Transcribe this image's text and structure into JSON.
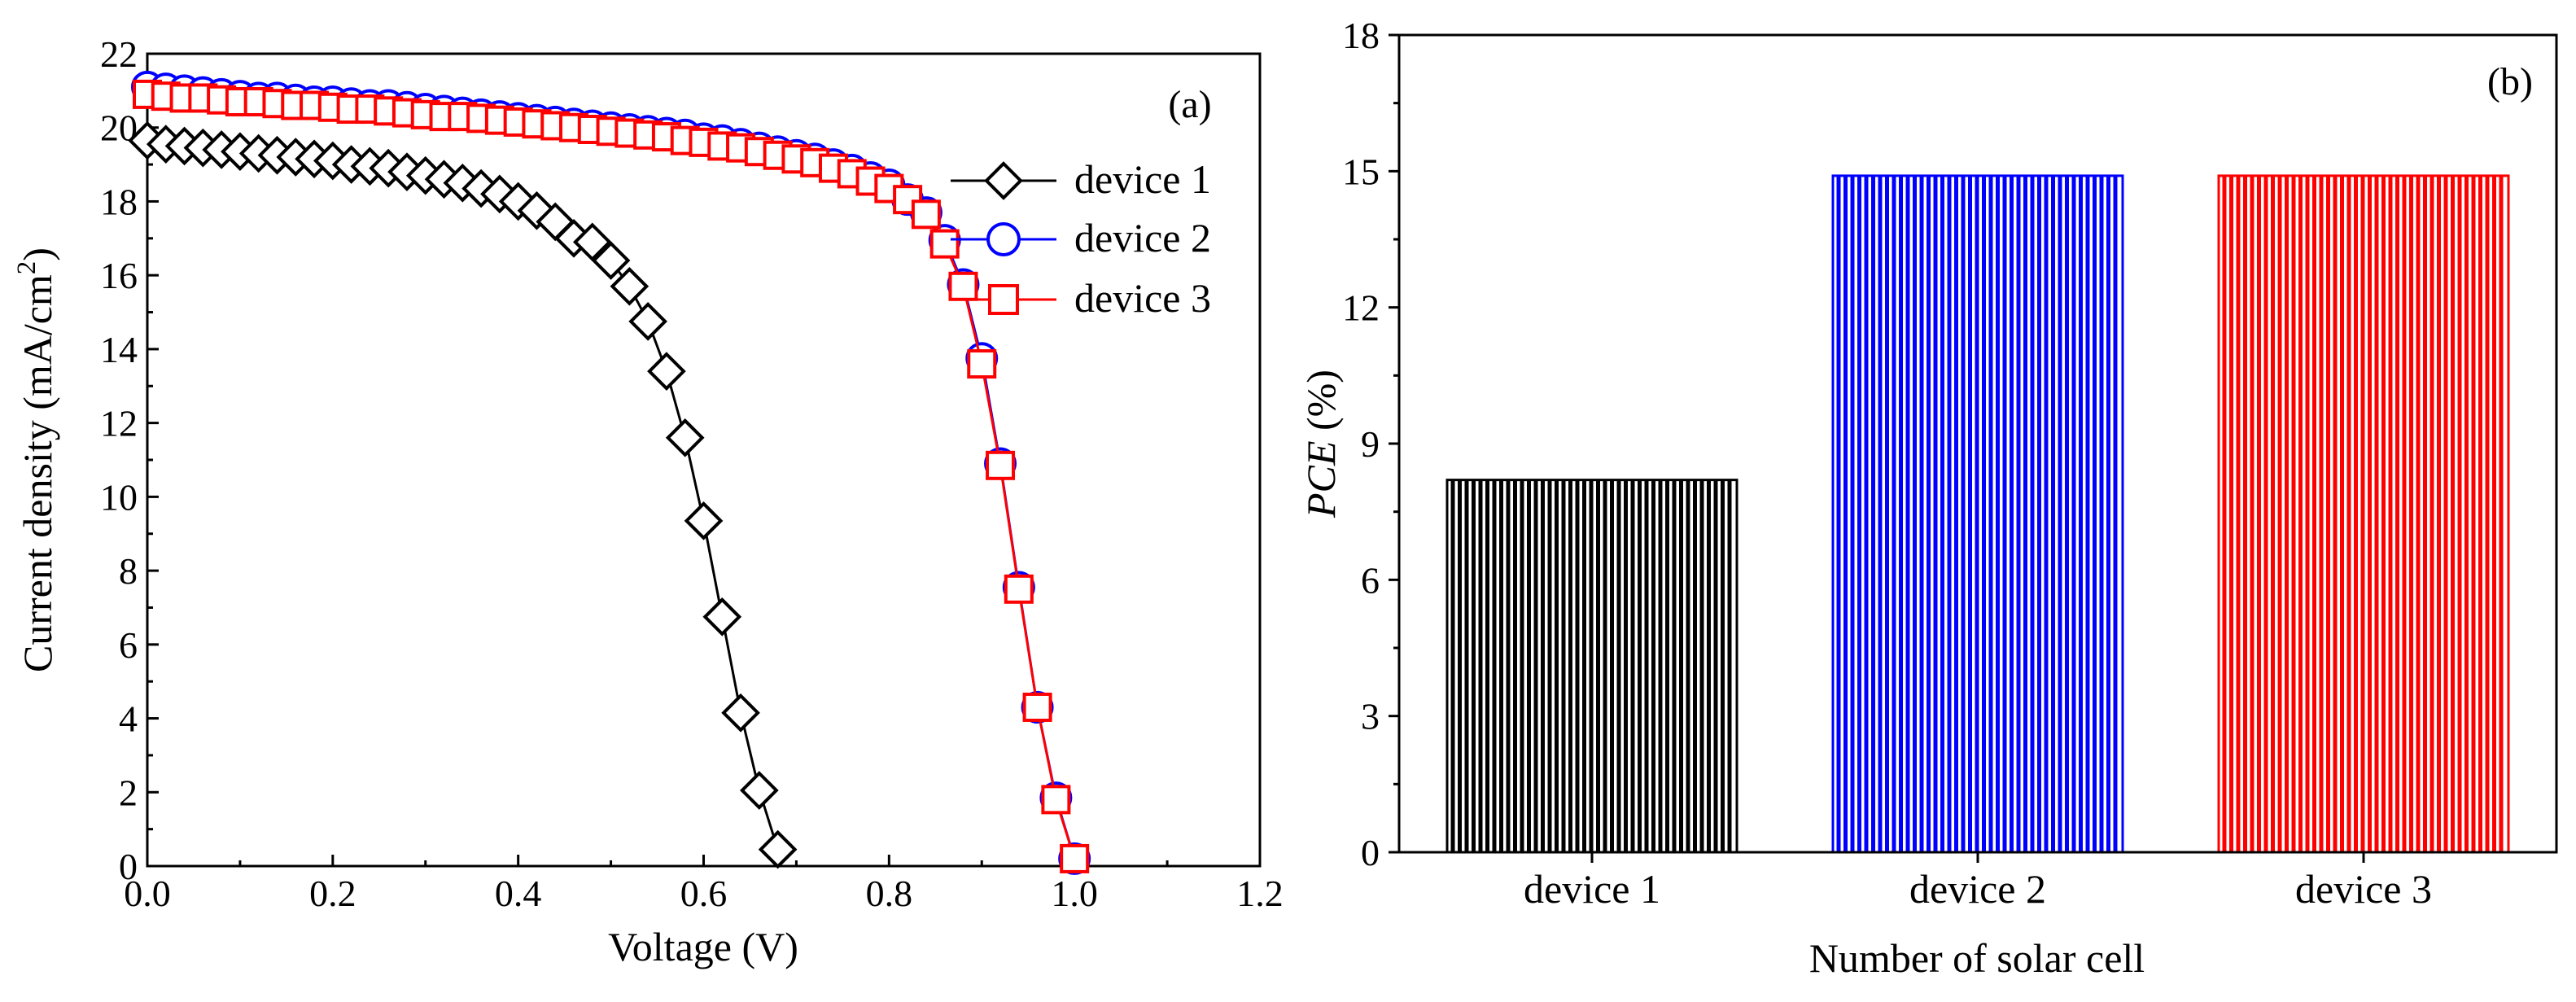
{
  "chart_data": [
    {
      "panel_label": "(a)",
      "type": "line",
      "xlabel": "Voltage (V)",
      "ylabel_main": "Current density (mA/cm",
      "ylabel_sup": "2",
      "ylabel_close": ")",
      "xlim": [
        0.0,
        1.2
      ],
      "ylim": [
        0,
        22
      ],
      "xticks": [
        "0.0",
        "0.2",
        "0.4",
        "0.6",
        "0.8",
        "1.0",
        "1.2"
      ],
      "yticks": [
        "0",
        "2",
        "4",
        "6",
        "8",
        "10",
        "12",
        "14",
        "16",
        "18",
        "20",
        "22"
      ],
      "legend": [
        "device 1",
        "device 2",
        "device 3"
      ],
      "series": [
        {
          "name": "device 1",
          "color": "#000000",
          "marker": "diamond",
          "x": [
            0.0,
            0.02,
            0.04,
            0.06,
            0.08,
            0.1,
            0.12,
            0.14,
            0.16,
            0.18,
            0.2,
            0.22,
            0.24,
            0.26,
            0.28,
            0.3,
            0.32,
            0.34,
            0.36,
            0.38,
            0.4,
            0.42,
            0.44,
            0.46,
            0.48,
            0.5,
            0.52,
            0.54,
            0.56,
            0.58,
            0.6,
            0.62,
            0.64,
            0.66,
            0.68
          ],
          "y": [
            19.65,
            19.55,
            19.5,
            19.45,
            19.4,
            19.35,
            19.3,
            19.25,
            19.2,
            19.15,
            19.1,
            19.0,
            18.95,
            18.9,
            18.8,
            18.7,
            18.6,
            18.5,
            18.35,
            18.2,
            18.0,
            17.75,
            17.45,
            17.0,
            16.9,
            16.4,
            15.7,
            14.75,
            13.4,
            11.6,
            9.35,
            6.75,
            4.15,
            2.05,
            0.45
          ]
        },
        {
          "name": "device 2",
          "color": "#0000ff",
          "marker": "circle",
          "x": [
            0.0,
            0.02,
            0.04,
            0.06,
            0.08,
            0.1,
            0.12,
            0.14,
            0.16,
            0.18,
            0.2,
            0.22,
            0.24,
            0.26,
            0.28,
            0.3,
            0.32,
            0.34,
            0.36,
            0.38,
            0.4,
            0.42,
            0.44,
            0.46,
            0.48,
            0.5,
            0.52,
            0.54,
            0.56,
            0.58,
            0.6,
            0.62,
            0.64,
            0.66,
            0.68,
            0.7,
            0.72,
            0.74,
            0.76,
            0.78,
            0.8,
            0.82,
            0.84,
            0.86,
            0.88,
            0.9,
            0.92,
            0.94,
            0.96,
            0.98,
            1.0
          ],
          "y": [
            21.1,
            21.05,
            21.0,
            20.95,
            20.9,
            20.85,
            20.8,
            20.8,
            20.75,
            20.7,
            20.7,
            20.65,
            20.6,
            20.6,
            20.55,
            20.5,
            20.45,
            20.4,
            20.35,
            20.3,
            20.25,
            20.2,
            20.15,
            20.1,
            20.05,
            20.0,
            19.95,
            19.9,
            19.85,
            19.8,
            19.7,
            19.65,
            19.55,
            19.45,
            19.35,
            19.25,
            19.15,
            19.0,
            18.85,
            18.65,
            18.45,
            18.05,
            17.7,
            16.95,
            15.75,
            13.75,
            10.9,
            7.55,
            4.3,
            1.85,
            0.2
          ]
        },
        {
          "name": "device 3",
          "color": "#ff0000",
          "marker": "square",
          "x": [
            0.0,
            0.02,
            0.04,
            0.06,
            0.08,
            0.1,
            0.12,
            0.14,
            0.16,
            0.18,
            0.2,
            0.22,
            0.24,
            0.26,
            0.28,
            0.3,
            0.32,
            0.34,
            0.36,
            0.38,
            0.4,
            0.42,
            0.44,
            0.46,
            0.48,
            0.5,
            0.52,
            0.54,
            0.56,
            0.58,
            0.6,
            0.62,
            0.64,
            0.66,
            0.68,
            0.7,
            0.72,
            0.74,
            0.76,
            0.78,
            0.8,
            0.82,
            0.84,
            0.86,
            0.88,
            0.9,
            0.92,
            0.94,
            0.96,
            0.98,
            1.0
          ],
          "y": [
            20.9,
            20.85,
            20.8,
            20.8,
            20.75,
            20.7,
            20.7,
            20.65,
            20.6,
            20.6,
            20.55,
            20.5,
            20.5,
            20.45,
            20.4,
            20.35,
            20.3,
            20.3,
            20.25,
            20.2,
            20.15,
            20.1,
            20.05,
            20.0,
            19.95,
            19.9,
            19.85,
            19.8,
            19.75,
            19.65,
            19.6,
            19.5,
            19.45,
            19.35,
            19.25,
            19.15,
            19.05,
            18.9,
            18.75,
            18.55,
            18.35,
            18.05,
            17.65,
            16.85,
            15.7,
            13.6,
            10.85,
            7.5,
            4.3,
            1.8,
            0.2
          ]
        }
      ],
      "legend_placement": "center-right"
    },
    {
      "panel_label": "(b)",
      "type": "bar",
      "xlabel": "Number of solar cell",
      "ylabel_italic": "PCE",
      "ylabel_rest": " (%)",
      "categories": [
        "device 1",
        "device 2",
        "device 3"
      ],
      "values": [
        8.2,
        14.9,
        14.9
      ],
      "colors": [
        "#000000",
        "#0000ff",
        "#ff0000"
      ],
      "ylim": [
        0,
        18
      ],
      "yticks": [
        "0",
        "3",
        "6",
        "9",
        "12",
        "15",
        "18"
      ]
    }
  ]
}
